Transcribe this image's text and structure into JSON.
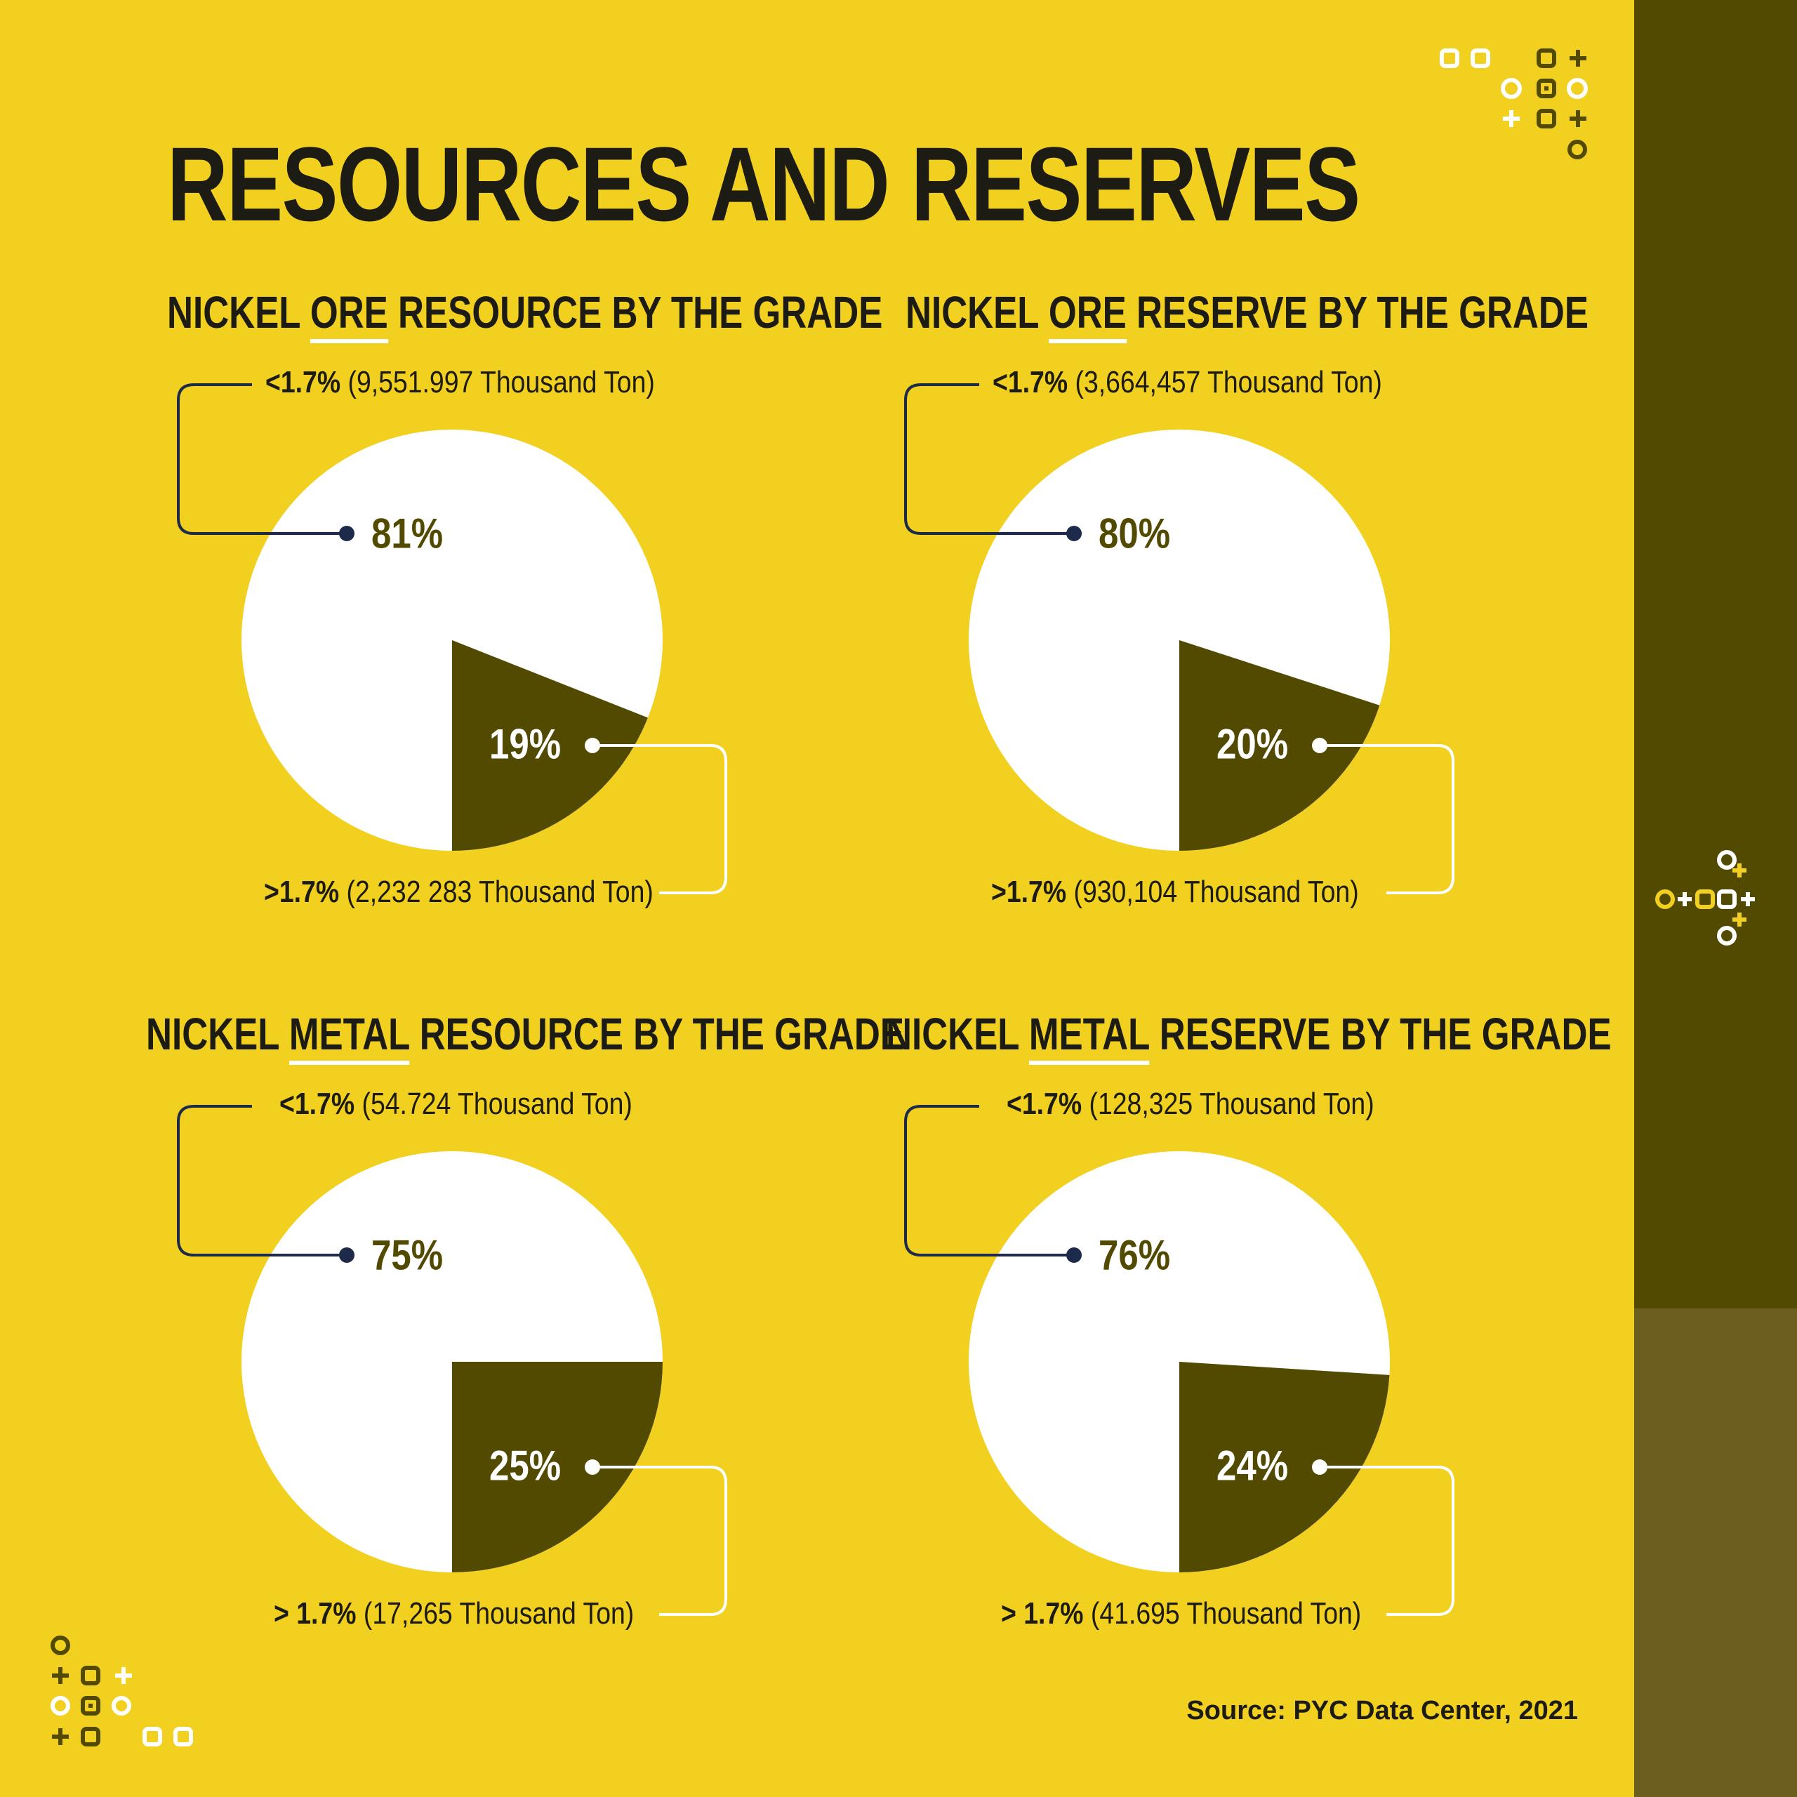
{
  "title": "RESOURCES AND RESERVES",
  "source": "Source: PYC Data Center, 2021",
  "colors": {
    "background": "#f2d020",
    "dark_olive": "#534a02",
    "white": "#ffffff",
    "navy": "#1e2a4a"
  },
  "chart_data": [
    {
      "type": "pie",
      "title_parts": [
        "NICKEL ",
        "ORE",
        " RESOURCE BY THE GRADE"
      ],
      "slices": [
        {
          "label": "<1.7%",
          "value": 81,
          "detail": "(9,551.997 Thousand Ton)",
          "color": "#ffffff"
        },
        {
          "label": ">1.7%",
          "value": 19,
          "detail": "(2,232 283 Thousand Ton)",
          "color": "#534a02"
        }
      ]
    },
    {
      "type": "pie",
      "title_parts": [
        "NICKEL ",
        "ORE",
        " RESERVE BY THE GRADE"
      ],
      "slices": [
        {
          "label": "<1.7%",
          "value": 80,
          "detail": "(3,664,457 Thousand Ton)",
          "color": "#ffffff"
        },
        {
          "label": ">1.7%",
          "value": 20,
          "detail": "(930,104 Thousand Ton)",
          "color": "#534a02"
        }
      ]
    },
    {
      "type": "pie",
      "title_parts": [
        "NICKEL ",
        "METAL",
        " RESOURCE BY THE GRADE"
      ],
      "slices": [
        {
          "label": "<1.7%",
          "value": 75,
          "detail": "(54.724 Thousand Ton)",
          "color": "#ffffff"
        },
        {
          "label": "> 1.7%",
          "value": 25,
          "detail": "(17,265 Thousand Ton)",
          "color": "#534a02"
        }
      ]
    },
    {
      "type": "pie",
      "title_parts": [
        "NICKEL ",
        "METAL",
        " RESERVE BY THE GRADE"
      ],
      "slices": [
        {
          "label": "<1.7%",
          "value": 76,
          "detail": "(128,325 Thousand Ton)",
          "color": "#ffffff"
        },
        {
          "label": "> 1.7%",
          "value": 24,
          "detail": "(41.695 Thousand Ton)",
          "color": "#534a02"
        }
      ]
    }
  ]
}
